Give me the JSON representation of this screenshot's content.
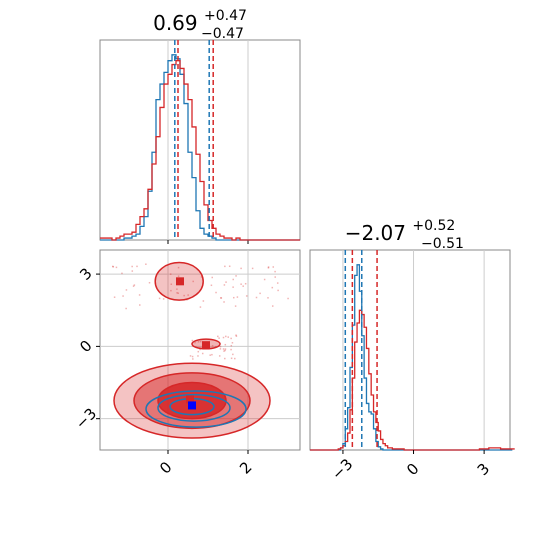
{
  "chart_data": [
    {
      "type": "histogram",
      "panel": "marginal-x",
      "title": {
        "base": "0.69",
        "plus": "+0.47",
        "minus": "−0.47"
      },
      "xlim": [
        -1.7,
        3.3
      ],
      "grid": true,
      "series": [
        {
          "color": "#1f77b4",
          "bin_edges_start": -1.7,
          "bin_width": 0.1,
          "counts": [
            0,
            0,
            0,
            0,
            0,
            0,
            1,
            1,
            2,
            3,
            7,
            12,
            25,
            45,
            72,
            80,
            86,
            92,
            95,
            93,
            85,
            70,
            45,
            32,
            15,
            6,
            3,
            2,
            1,
            0,
            0,
            0,
            0,
            0,
            0,
            0,
            0,
            0,
            0,
            0,
            0,
            0,
            0,
            0,
            0,
            0,
            0,
            0,
            0,
            0
          ],
          "quantile_lines": [
            0.17,
            1.03
          ]
        },
        {
          "color": "#d62728",
          "bin_edges_start": -1.7,
          "bin_width": 0.1,
          "counts": [
            1,
            1,
            1,
            0,
            1,
            2,
            3,
            3,
            4,
            8,
            12,
            16,
            26,
            39,
            53,
            68,
            80,
            85,
            90,
            92,
            88,
            80,
            72,
            58,
            44,
            30,
            18,
            10,
            6,
            3,
            2,
            1,
            1,
            0,
            1,
            0,
            0,
            0,
            0,
            0,
            0,
            0,
            0,
            0,
            0,
            0,
            0,
            0,
            0,
            0
          ],
          "quantile_lines": [
            0.25,
            1.13
          ]
        }
      ]
    },
    {
      "type": "histogram",
      "panel": "marginal-y",
      "title": {
        "base": "−2.07",
        "plus": "+0.52",
        "minus": "−0.51"
      },
      "xlim": [
        -4.4,
        4.1
      ],
      "grid": true,
      "series": [
        {
          "color": "#1f77b4",
          "bin_edges_start": -4.4,
          "bin_width": 0.1,
          "counts": [
            0,
            0,
            0,
            0,
            0,
            0,
            0,
            0,
            0,
            0,
            0,
            0,
            0,
            2,
            6,
            20,
            40,
            78,
            118,
            165,
            175,
            150,
            108,
            68,
            44,
            36,
            34,
            20,
            8,
            3,
            1,
            0,
            0,
            0,
            0,
            0,
            0,
            0,
            0,
            0,
            0,
            0,
            0,
            0,
            0,
            0,
            0,
            0,
            0,
            0,
            0,
            0,
            0,
            0,
            0,
            0,
            0,
            0,
            0,
            0,
            0,
            0,
            0,
            0,
            0,
            0,
            0,
            0,
            0,
            0,
            0,
            0,
            0,
            0,
            0,
            0,
            0,
            0,
            0,
            0,
            0,
            0,
            0,
            0,
            0,
            0
          ],
          "quantile_lines": [
            -2.9,
            -2.2
          ]
        },
        {
          "color": "#d62728",
          "bin_edges_start": -4.4,
          "bin_width": 0.1,
          "counts": [
            0,
            0,
            0,
            0,
            0,
            0,
            0,
            0,
            0,
            0,
            0,
            0,
            1,
            2,
            4,
            8,
            16,
            38,
            68,
            102,
            120,
            132,
            128,
            116,
            96,
            72,
            52,
            36,
            26,
            18,
            10,
            6,
            4,
            2,
            2,
            1,
            1,
            1,
            1,
            1,
            0,
            0,
            0,
            0,
            0,
            0,
            0,
            0,
            0,
            0,
            0,
            0,
            0,
            0,
            0,
            0,
            0,
            0,
            0,
            0,
            0,
            0,
            0,
            0,
            0,
            0,
            0,
            0,
            0,
            0,
            0,
            0,
            1,
            1,
            1,
            1,
            2,
            2,
            2,
            2,
            2,
            1,
            1,
            1,
            1,
            1,
            1
          ],
          "quantile_lines": [
            -2.6,
            -1.55
          ]
        }
      ]
    },
    {
      "type": "contour",
      "panel": "joint",
      "xlim": [
        -1.7,
        3.3
      ],
      "ylim": [
        -4.3,
        4.0
      ],
      "grid": true,
      "x_ticks": [
        "0",
        "2"
      ],
      "x_tick_values": [
        0,
        2
      ],
      "y_ticks": [
        "−3",
        "0",
        "3"
      ],
      "y_tick_values": [
        -3,
        0,
        3
      ],
      "series": [
        {
          "color": "#d62728",
          "fill": true,
          "peaks": [
            {
              "x": 0.55,
              "y": -2.2
            },
            {
              "x": 0.3,
              "y": 2.7
            },
            {
              "x": 0.95,
              "y": 0.05
            }
          ],
          "levels": [
            {
              "x": 0.6,
              "y": -2.25,
              "rx": 1.95,
              "ry": 1.55,
              "opacity": 0.28
            },
            {
              "x": 0.6,
              "y": -2.25,
              "rx": 1.45,
              "ry": 1.15,
              "opacity": 0.5
            },
            {
              "x": 0.6,
              "y": -2.25,
              "rx": 0.85,
              "ry": 0.75,
              "opacity": 0.85
            },
            {
              "x": 0.28,
              "y": 2.7,
              "rx": 0.6,
              "ry": 0.78,
              "opacity": 0.28
            },
            {
              "x": 0.95,
              "y": 0.1,
              "rx": 0.35,
              "ry": 0.2,
              "opacity": 0.35
            }
          ],
          "marker": {
            "x": 0.55,
            "y": -2.15
          }
        },
        {
          "color": "#1f77b4",
          "fill": false,
          "levels": [
            {
              "x": 0.7,
              "y": -2.6,
              "rx": 1.25,
              "ry": 0.75
            },
            {
              "x": 0.65,
              "y": -2.55,
              "rx": 0.9,
              "ry": 0.55
            },
            {
              "x": 0.6,
              "y": -2.5,
              "rx": 0.55,
              "ry": 0.33
            }
          ],
          "marker": {
            "x": 0.6,
            "y": -2.45
          }
        }
      ]
    }
  ],
  "top_hist_x_ticks": [
    0,
    2
  ],
  "y_hist_x_ticks": [
    "−3",
    "0",
    "3"
  ],
  "y_hist_x_tick_values": [
    -3,
    0,
    3
  ]
}
